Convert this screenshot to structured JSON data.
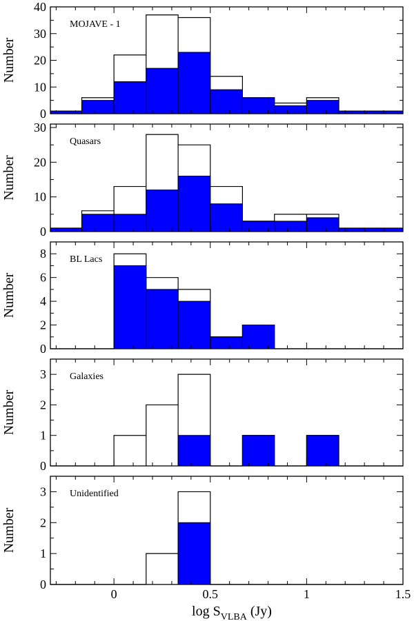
{
  "chart_data": {
    "type": "bar",
    "x_axis": {
      "label": "log S",
      "label_sub": "VLBA",
      "label_suffix": "(Jy)",
      "range": [
        -0.33,
        1.5
      ],
      "tick_labels": [
        {
          "value": 0,
          "label": "0"
        },
        {
          "value": 0.5,
          "label": "0.5"
        },
        {
          "value": 1,
          "label": "1"
        },
        {
          "value": 1.5,
          "label": "1.5"
        }
      ],
      "minor_tick_step": 0.1
    },
    "bin_edges": [
      -0.33,
      -0.167,
      0.0,
      0.167,
      0.333,
      0.5,
      0.667,
      0.833,
      1.0,
      1.167,
      1.5
    ],
    "panels": [
      {
        "name": "MOJAVE - 1",
        "ylabel": "Number",
        "ylim": [
          0,
          40
        ],
        "y_ticks": [
          0,
          10,
          20,
          30,
          40
        ],
        "y_minor_step": 5,
        "series": [
          {
            "style": "outline",
            "values": [
              1,
              6,
              22,
              37,
              36,
              14,
              6,
              4,
              6,
              1
            ]
          },
          {
            "style": "filled",
            "color": "#0000ff",
            "values": [
              1,
              5,
              12,
              17,
              23,
              9,
              6,
              3,
              5,
              1
            ]
          }
        ]
      },
      {
        "name": "Quasars",
        "ylabel": "Number",
        "ylim": [
          0,
          31
        ],
        "y_ticks": [
          0,
          10,
          20,
          30
        ],
        "y_minor_step": 5,
        "series": [
          {
            "style": "outline",
            "values": [
              1,
              6,
              13,
              28,
              25,
              13,
              3,
              5,
              5,
              1
            ]
          },
          {
            "style": "filled",
            "color": "#0000ff",
            "values": [
              1,
              5,
              5,
              12,
              16,
              8,
              3,
              3,
              4,
              1
            ]
          }
        ]
      },
      {
        "name": "BL Lacs",
        "ylabel": "Number",
        "ylim": [
          0,
          9
        ],
        "y_ticks": [
          0,
          2,
          4,
          6,
          8
        ],
        "y_minor_step": 1,
        "series": [
          {
            "style": "outline",
            "values": [
              0,
              0,
              8,
              6,
              5,
              1,
              2,
              0,
              0,
              0
            ]
          },
          {
            "style": "filled",
            "color": "#0000ff",
            "values": [
              0,
              0,
              7,
              5,
              4,
              1,
              2,
              0,
              0,
              0
            ]
          }
        ]
      },
      {
        "name": "Galaxies",
        "ylabel": "Number",
        "ylim": [
          0,
          3.5
        ],
        "y_ticks": [
          0,
          1,
          2,
          3
        ],
        "y_minor_step": 0.5,
        "series": [
          {
            "style": "outline",
            "values": [
              0,
              0,
              1,
              2,
              3,
              0,
              1,
              0,
              1,
              0
            ]
          },
          {
            "style": "filled",
            "color": "#0000ff",
            "values": [
              0,
              0,
              0,
              0,
              1,
              0,
              1,
              0,
              1,
              0
            ]
          }
        ]
      },
      {
        "name": "Unidentified",
        "ylabel": "Number",
        "ylim": [
          0,
          3.5
        ],
        "y_ticks": [
          0,
          1,
          2,
          3
        ],
        "y_minor_step": 0.5,
        "series": [
          {
            "style": "outline",
            "values": [
              0,
              0,
              0,
              1,
              3,
              0,
              0,
              0,
              0,
              0
            ]
          },
          {
            "style": "filled",
            "color": "#0000ff",
            "values": [
              0,
              0,
              0,
              0,
              2,
              0,
              0,
              0,
              0,
              0
            ]
          }
        ]
      }
    ]
  }
}
